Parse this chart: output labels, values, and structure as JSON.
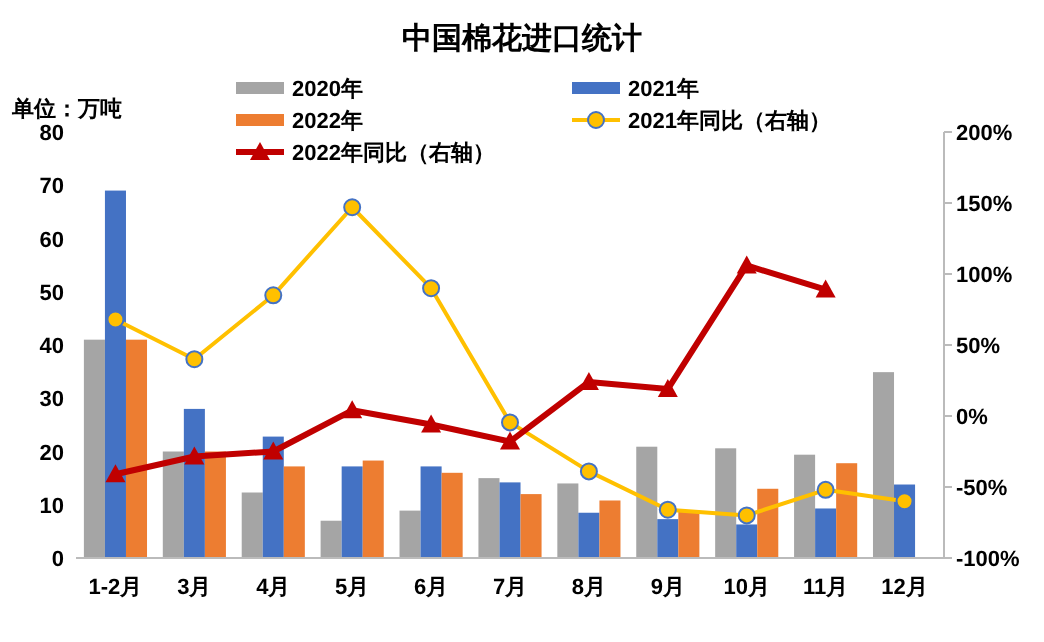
{
  "chart_data": {
    "type": "bar",
    "title": "中国棉花进口统计",
    "annotations": [
      "单位：万吨"
    ],
    "categories": [
      "1-2月",
      "3月",
      "4月",
      "5月",
      "6月",
      "7月",
      "8月",
      "9月",
      "10月",
      "11月",
      "12月"
    ],
    "series": [
      {
        "name": "2020年",
        "color": "#a5a5a5",
        "values": [
          41,
          20,
          12.3,
          7,
          8.9,
          15,
          14,
          20.9,
          20.6,
          19.4,
          34.9
        ]
      },
      {
        "name": "2021年",
        "color": "#4472c4",
        "values": [
          69,
          28,
          22.8,
          17.2,
          17.2,
          14.2,
          8.5,
          7.3,
          6.3,
          9.3,
          13.8
        ]
      },
      {
        "name": "2022年",
        "color": "#ed7d31",
        "values": [
          41,
          20,
          17.2,
          18.3,
          16,
          12,
          10.8,
          8.8,
          13,
          17.8,
          null
        ]
      },
      {
        "name": "2021年同比（右轴）",
        "type": "line",
        "axis": "y2",
        "color": "#ffc000",
        "marker": "circle",
        "values": [
          68,
          40,
          85,
          147,
          90,
          -4.5,
          -39,
          -66,
          -70,
          -52,
          -60
        ]
      },
      {
        "name": "2022年同比（右轴）",
        "type": "line",
        "axis": "y2",
        "color": "#c00000",
        "marker": "triangle",
        "values": [
          -41,
          -28.5,
          -25,
          4,
          -6,
          -18,
          24,
          19,
          106,
          89,
          null
        ]
      }
    ],
    "ylim": [
      0,
      80
    ],
    "yticks": [
      0,
      10,
      20,
      30,
      40,
      50,
      60,
      70,
      80
    ],
    "y2lim": [
      -100,
      200
    ],
    "y2ticks": [
      {
        "value": -100,
        "label": "-100%"
      },
      {
        "value": -50,
        "label": "-50%"
      },
      {
        "value": 0,
        "label": "0%"
      },
      {
        "value": 50,
        "label": "50%"
      },
      {
        "value": 100,
        "label": "100%"
      },
      {
        "value": 150,
        "label": "150%"
      },
      {
        "value": 200,
        "label": "200%"
      }
    ],
    "legend": "top",
    "grid": false
  }
}
